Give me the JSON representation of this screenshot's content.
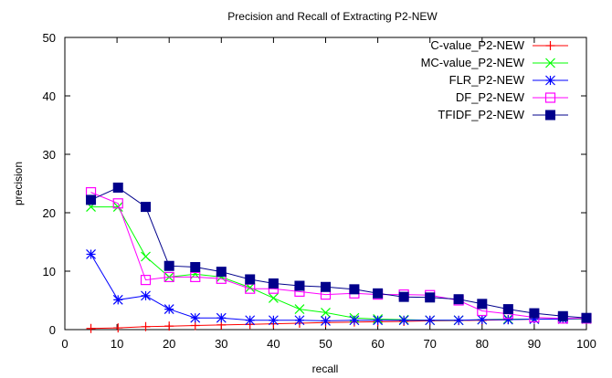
{
  "chart_data": {
    "type": "line",
    "title": "Precision and Recall of Extracting P2-NEW",
    "xlabel": "recall",
    "ylabel": "precision",
    "xlim": [
      0,
      100
    ],
    "ylim": [
      0,
      50
    ],
    "xticks": [
      0,
      10,
      20,
      30,
      40,
      50,
      60,
      70,
      80,
      90,
      100
    ],
    "yticks": [
      0,
      10,
      20,
      30,
      40,
      50
    ],
    "grid": false,
    "legend_position": "top-right",
    "series": [
      {
        "name": "C-value_P2-NEW",
        "color": "#ff0000",
        "marker": "plus",
        "points": [
          [
            5,
            0.2
          ],
          [
            10.2,
            0.3
          ],
          [
            15.5,
            0.5
          ],
          [
            20,
            0.6
          ],
          [
            25,
            0.7
          ],
          [
            30,
            0.8
          ],
          [
            35.5,
            0.9
          ],
          [
            40,
            1.0
          ],
          [
            45,
            1.1
          ],
          [
            50,
            1.2
          ],
          [
            55.5,
            1.3
          ],
          [
            60,
            1.35
          ],
          [
            65,
            1.4
          ],
          [
            70,
            1.5
          ],
          [
            75.5,
            1.55
          ],
          [
            80,
            1.6
          ],
          [
            85,
            1.7
          ],
          [
            90,
            1.8
          ],
          [
            95.5,
            1.85
          ],
          [
            100,
            1.9
          ]
        ]
      },
      {
        "name": "MC-value_P2-NEW",
        "color": "#00ff00",
        "marker": "cross",
        "points": [
          [
            5,
            21
          ],
          [
            10.2,
            21
          ],
          [
            15.5,
            12.5
          ],
          [
            20,
            9
          ],
          [
            25,
            9.5
          ],
          [
            30,
            9
          ],
          [
            35.5,
            7.2
          ],
          [
            40,
            5.4
          ],
          [
            45,
            3.5
          ],
          [
            50,
            2.9
          ],
          [
            55.5,
            2
          ],
          [
            60,
            1.8
          ],
          [
            65,
            1.7
          ],
          [
            70,
            1.6
          ],
          [
            75.5,
            1.6
          ],
          [
            80,
            1.7
          ],
          [
            85,
            1.8
          ],
          [
            90,
            1.8
          ],
          [
            95.5,
            1.8
          ],
          [
            100,
            1.8
          ]
        ]
      },
      {
        "name": "FLR_P2-NEW",
        "color": "#0000ff",
        "marker": "star",
        "points": [
          [
            5,
            12.9
          ],
          [
            10.2,
            5.1
          ],
          [
            15.5,
            5.8
          ],
          [
            20,
            3.5
          ],
          [
            25,
            2
          ],
          [
            30,
            2
          ],
          [
            35.5,
            1.6
          ],
          [
            40,
            1.6
          ],
          [
            45,
            1.6
          ],
          [
            50,
            1.5
          ],
          [
            55.5,
            1.6
          ],
          [
            60,
            1.6
          ],
          [
            65,
            1.6
          ],
          [
            70,
            1.6
          ],
          [
            75.5,
            1.6
          ],
          [
            80,
            1.7
          ],
          [
            85,
            1.7
          ],
          [
            90,
            1.8
          ],
          [
            95.5,
            1.8
          ],
          [
            100,
            1.9
          ]
        ]
      },
      {
        "name": "DF_P2-NEW",
        "color": "#ff00ff",
        "marker": "square-open",
        "points": [
          [
            5,
            23.5
          ],
          [
            10.2,
            21.6
          ],
          [
            15.5,
            8.5
          ],
          [
            20,
            9
          ],
          [
            25,
            9
          ],
          [
            30,
            8.7
          ],
          [
            35.5,
            7
          ],
          [
            40,
            7
          ],
          [
            45,
            6.5
          ],
          [
            50,
            6
          ],
          [
            55.5,
            6.2
          ],
          [
            60,
            6
          ],
          [
            65,
            6
          ],
          [
            70,
            5.9
          ],
          [
            75.5,
            5
          ],
          [
            80,
            3.2
          ],
          [
            85,
            2.7
          ],
          [
            90,
            2.1
          ],
          [
            95.5,
            1.9
          ],
          [
            100,
            1.9
          ]
        ]
      },
      {
        "name": "TFIDF_P2-NEW",
        "color": "#00008b",
        "marker": "square-filled",
        "points": [
          [
            5,
            22.2
          ],
          [
            10.2,
            24.3
          ],
          [
            15.5,
            21
          ],
          [
            20,
            10.9
          ],
          [
            25,
            10.7
          ],
          [
            30,
            9.9
          ],
          [
            35.5,
            8.6
          ],
          [
            40,
            7.9
          ],
          [
            45,
            7.5
          ],
          [
            50,
            7.3
          ],
          [
            55.5,
            6.9
          ],
          [
            60,
            6.2
          ],
          [
            65,
            5.6
          ],
          [
            70,
            5.5
          ],
          [
            75.5,
            5.2
          ],
          [
            80,
            4.4
          ],
          [
            85,
            3.5
          ],
          [
            90,
            2.8
          ],
          [
            95.5,
            2.3
          ],
          [
            100,
            2
          ]
        ]
      }
    ]
  }
}
